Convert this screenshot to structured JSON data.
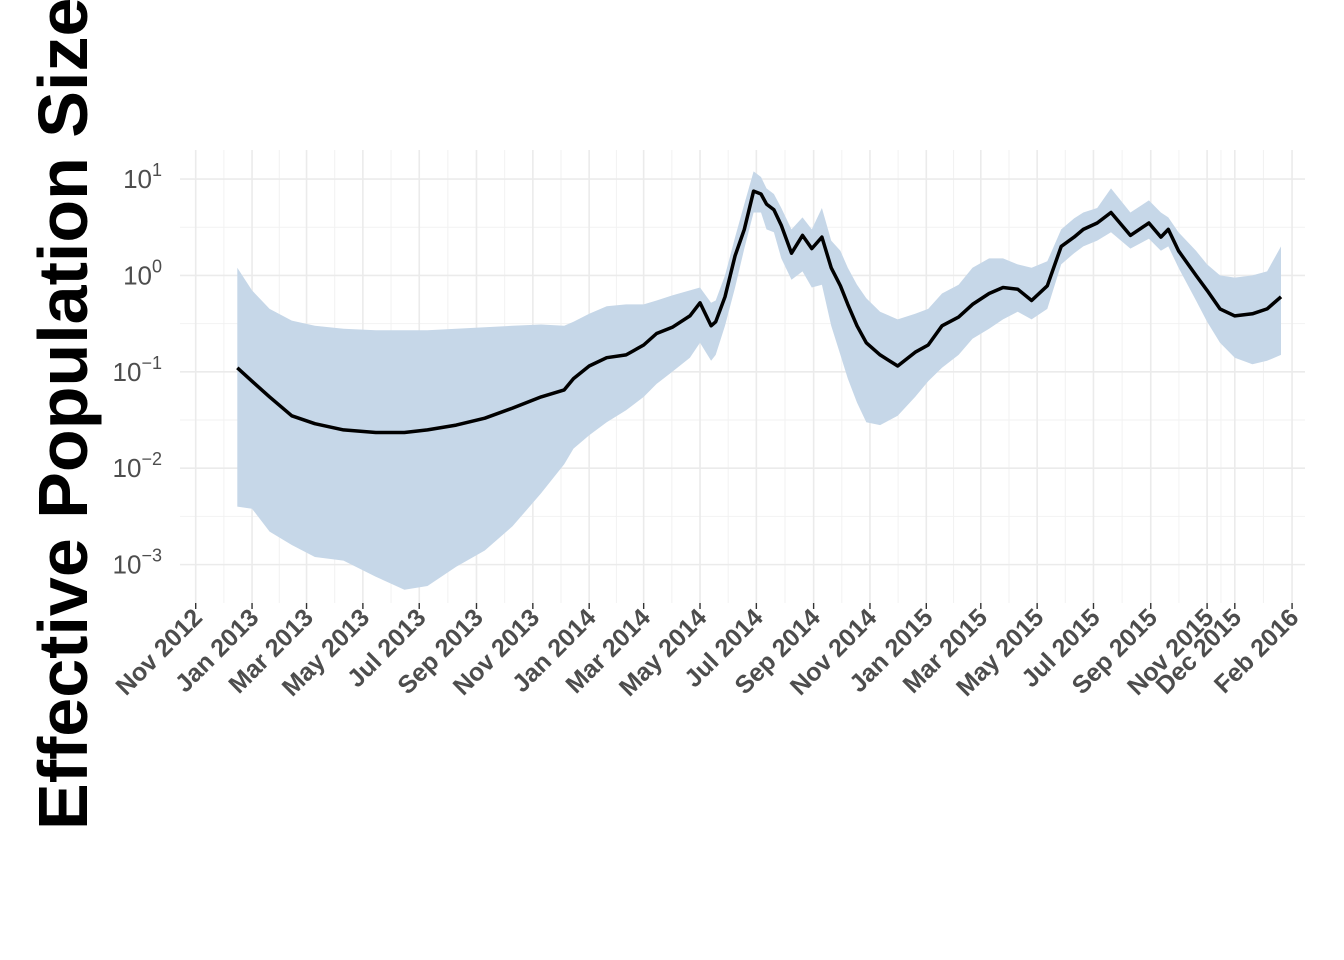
{
  "chart_data": {
    "type": "line",
    "title": "",
    "xlabel": "",
    "ylabel": "Effective Population Size (N",
    "y_scale": "log10",
    "ylim": [
      0.0004,
      20
    ],
    "xlim": [
      "2012-10-15",
      "2016-02-15"
    ],
    "grid": true,
    "legend": "none",
    "y_ticks": [
      {
        "base": "10",
        "exp": "1",
        "value": 10
      },
      {
        "base": "10",
        "exp": "0",
        "value": 1
      },
      {
        "base": "10",
        "exp": "−1",
        "value": 0.1
      },
      {
        "base": "10",
        "exp": "−2",
        "value": 0.01
      },
      {
        "base": "10",
        "exp": "−3",
        "value": 0.001
      }
    ],
    "x_ticks": [
      {
        "label": "Nov 2012",
        "date": "2012-11-01"
      },
      {
        "label": "Jan 2013",
        "date": "2013-01-01"
      },
      {
        "label": "Mar 2013",
        "date": "2013-03-01"
      },
      {
        "label": "May 2013",
        "date": "2013-05-01"
      },
      {
        "label": "Jul 2013",
        "date": "2013-07-01"
      },
      {
        "label": "Sep 2013",
        "date": "2013-09-01"
      },
      {
        "label": "Nov 2013",
        "date": "2013-11-01"
      },
      {
        "label": "Jan 2014",
        "date": "2014-01-01"
      },
      {
        "label": "Mar 2014",
        "date": "2014-03-01"
      },
      {
        "label": "May 2014",
        "date": "2014-05-01"
      },
      {
        "label": "Jul 2014",
        "date": "2014-07-01"
      },
      {
        "label": "Sep 2014",
        "date": "2014-09-01"
      },
      {
        "label": "Nov 2014",
        "date": "2014-11-01"
      },
      {
        "label": "Jan 2015",
        "date": "2015-01-01"
      },
      {
        "label": "Mar 2015",
        "date": "2015-03-01"
      },
      {
        "label": "May 2015",
        "date": "2015-05-01"
      },
      {
        "label": "Jul 2015",
        "date": "2015-07-01"
      },
      {
        "label": "Sep 2015",
        "date": "2015-09-01"
      },
      {
        "label": "Nov 2015",
        "date": "2015-11-01"
      },
      {
        "label": "Dec 2015",
        "date": "2015-12-01"
      },
      {
        "label": "Feb 2016",
        "date": "2016-02-01"
      }
    ],
    "colors": {
      "line": "#000000",
      "band": "#c6d7e8",
      "grid": "#ebebeb",
      "tick": "#4d4d4d"
    },
    "series": [
      {
        "x": [
          "2012-12-16",
          "2013-01-01",
          "2013-01-20",
          "2013-02-13",
          "2013-03-10",
          "2013-04-10",
          "2013-05-15",
          "2013-06-15",
          "2013-07-10",
          "2013-08-10",
          "2013-09-10",
          "2013-10-10",
          "2013-11-10",
          "2013-12-05",
          "2013-12-15",
          "2014-01-01",
          "2014-01-20",
          "2014-02-10",
          "2014-03-01",
          "2014-03-15",
          "2014-04-01",
          "2014-04-20",
          "2014-05-01",
          "2014-05-13",
          "2014-05-18",
          "2014-05-28",
          "2014-06-08",
          "2014-06-18",
          "2014-06-28",
          "2014-07-06",
          "2014-07-12",
          "2014-07-20",
          "2014-07-28",
          "2014-08-08",
          "2014-08-20",
          "2014-08-30",
          "2014-09-10",
          "2014-09-20",
          "2014-09-30",
          "2014-10-08",
          "2014-10-18",
          "2014-10-28",
          "2014-11-12",
          "2014-12-01",
          "2014-12-20",
          "2015-01-03",
          "2015-01-18",
          "2015-02-05",
          "2015-02-20",
          "2015-03-10",
          "2015-03-25",
          "2015-04-10",
          "2015-04-25",
          "2015-05-12",
          "2015-05-27",
          "2015-06-10",
          "2015-06-20",
          "2015-07-05",
          "2015-07-20",
          "2015-08-10",
          "2015-08-30",
          "2015-09-12",
          "2015-09-20",
          "2015-10-01",
          "2015-10-20",
          "2015-11-01",
          "2015-11-15",
          "2015-12-01",
          "2015-12-20",
          "2016-01-05",
          "2016-01-20"
        ],
        "y": [
          0.11,
          0.08,
          0.055,
          0.035,
          0.029,
          0.025,
          0.0235,
          0.0235,
          0.025,
          0.028,
          0.033,
          0.042,
          0.055,
          0.065,
          0.085,
          0.115,
          0.14,
          0.15,
          0.19,
          0.25,
          0.29,
          0.38,
          0.52,
          0.3,
          0.33,
          0.6,
          1.6,
          3.0,
          7.5,
          7.0,
          5.5,
          4.8,
          3.3,
          1.7,
          2.6,
          1.9,
          2.5,
          1.2,
          0.78,
          0.5,
          0.3,
          0.2,
          0.15,
          0.115,
          0.16,
          0.19,
          0.3,
          0.37,
          0.5,
          0.65,
          0.75,
          0.72,
          0.55,
          0.78,
          2.0,
          2.5,
          3.0,
          3.5,
          4.5,
          2.6,
          3.5,
          2.5,
          3.0,
          1.8,
          1.0,
          0.7,
          0.45,
          0.38,
          0.4,
          0.45,
          0.6
        ],
        "lower": [
          0.004,
          0.0038,
          0.0022,
          0.0016,
          0.0012,
          0.0011,
          0.00075,
          0.00055,
          0.0006,
          0.00095,
          0.0014,
          0.0025,
          0.0055,
          0.011,
          0.016,
          0.022,
          0.03,
          0.04,
          0.055,
          0.075,
          0.1,
          0.14,
          0.2,
          0.13,
          0.15,
          0.3,
          0.75,
          1.9,
          4.5,
          4.5,
          3.0,
          2.8,
          1.5,
          0.9,
          1.1,
          0.75,
          0.8,
          0.3,
          0.15,
          0.085,
          0.048,
          0.03,
          0.028,
          0.035,
          0.055,
          0.08,
          0.11,
          0.15,
          0.22,
          0.28,
          0.35,
          0.42,
          0.35,
          0.45,
          1.3,
          1.7,
          2.0,
          2.3,
          2.8,
          1.9,
          2.4,
          1.8,
          2.0,
          1.2,
          0.55,
          0.33,
          0.2,
          0.14,
          0.12,
          0.13,
          0.15
        ],
        "upper": [
          1.2,
          0.7,
          0.45,
          0.34,
          0.3,
          0.28,
          0.27,
          0.27,
          0.27,
          0.28,
          0.29,
          0.3,
          0.31,
          0.3,
          0.33,
          0.4,
          0.48,
          0.5,
          0.5,
          0.55,
          0.62,
          0.7,
          0.75,
          0.52,
          0.55,
          1.0,
          2.5,
          5.5,
          12.0,
          10.5,
          8.0,
          7.0,
          5.0,
          3.0,
          4.0,
          3.0,
          5.0,
          2.3,
          1.8,
          1.2,
          0.8,
          0.58,
          0.42,
          0.35,
          0.4,
          0.45,
          0.65,
          0.8,
          1.2,
          1.5,
          1.5,
          1.3,
          1.2,
          1.4,
          3.0,
          3.9,
          4.5,
          5.0,
          8.0,
          4.5,
          6.0,
          4.5,
          4.0,
          2.8,
          1.8,
          1.3,
          1.0,
          0.95,
          1.0,
          1.1,
          2.0
        ]
      }
    ]
  }
}
